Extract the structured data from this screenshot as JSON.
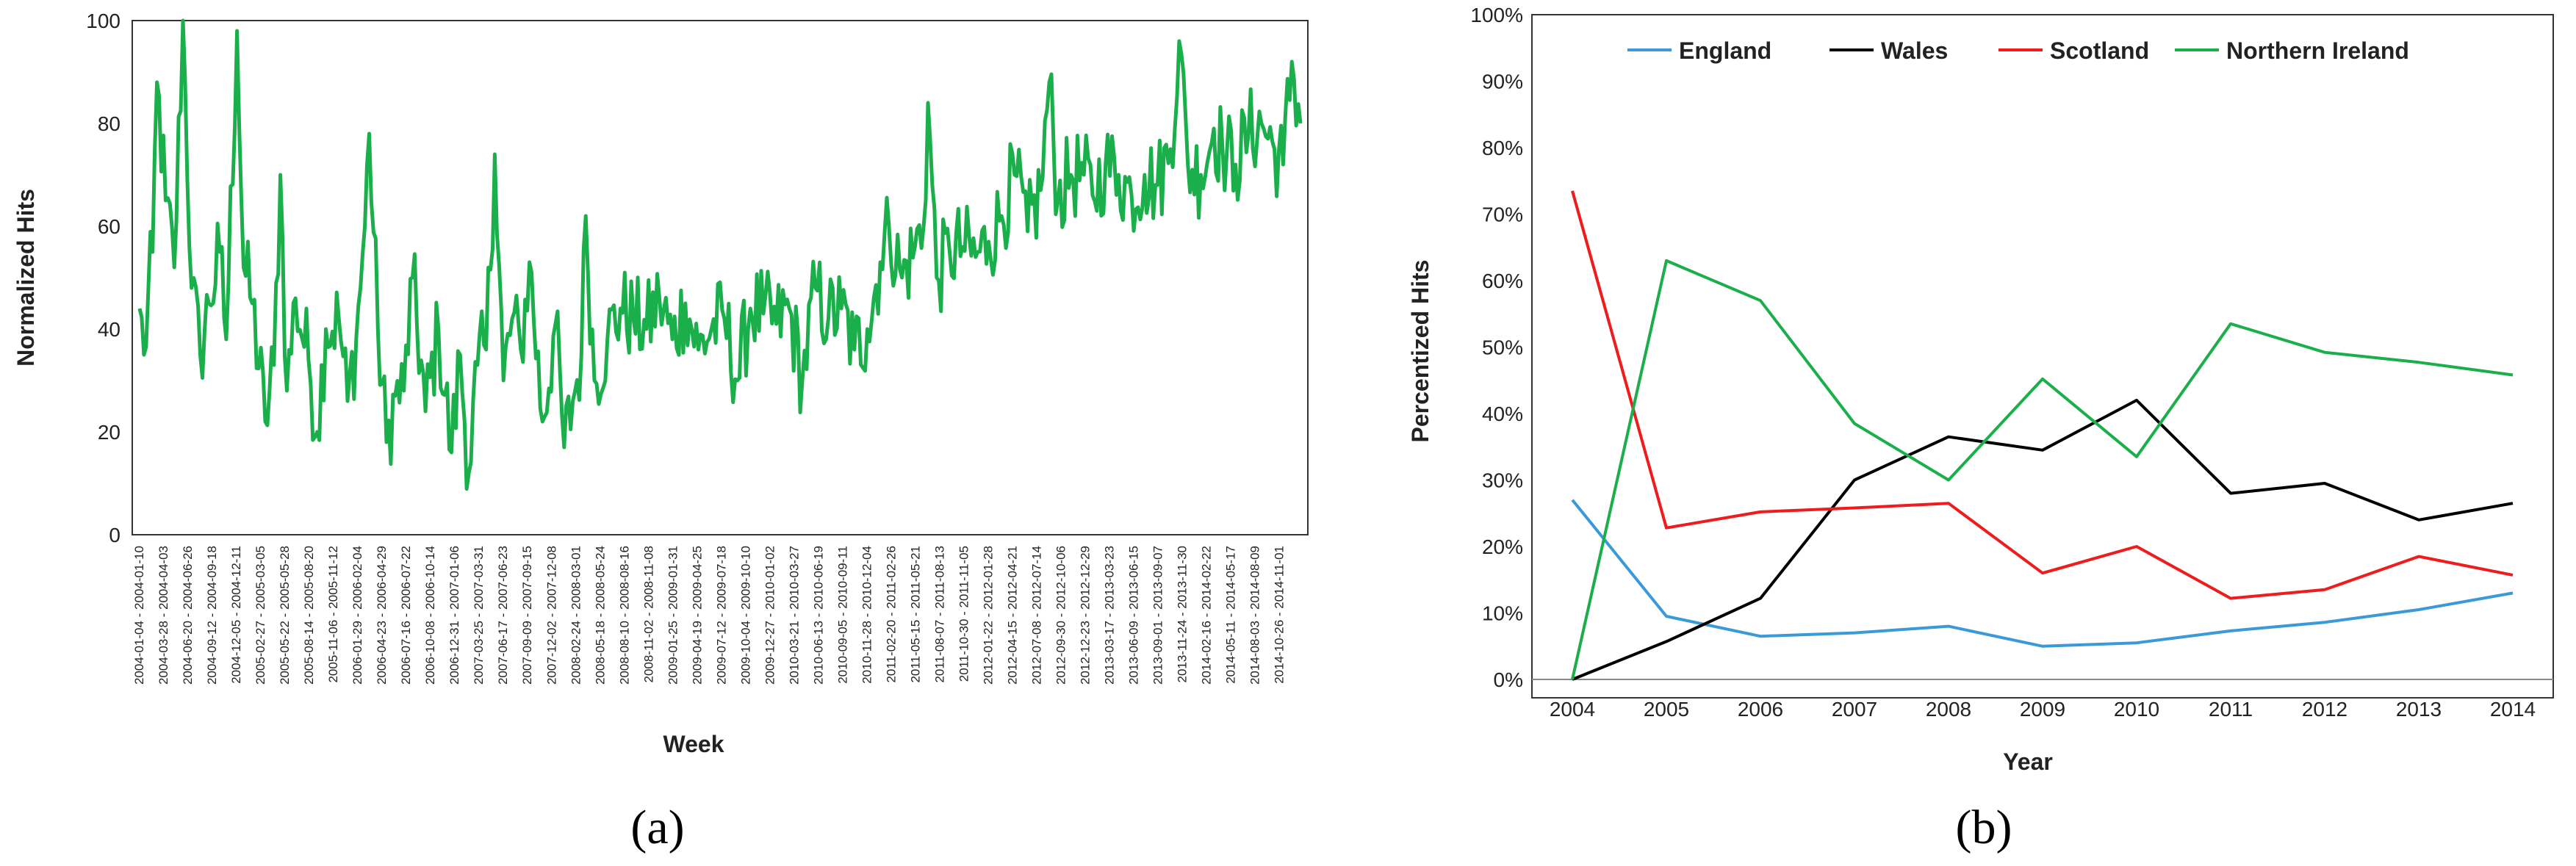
{
  "labels": {
    "panel_a": "(a)",
    "panel_b": "(b)"
  },
  "chart_data": [
    {
      "type": "line",
      "title": "",
      "xlabel": "Week",
      "ylabel": "Normalized Hits",
      "ylim": [
        0,
        100
      ],
      "yticks": [
        0,
        20,
        40,
        60,
        80,
        100
      ],
      "grid": false,
      "line_color": "#1aaf4b",
      "x_tick_labels": [
        "2004-01-04 - 2004-01-10",
        "2004-03-28 - 2004-04-03",
        "2004-06-20 - 2004-06-26",
        "2004-09-12 - 2004-09-18",
        "2004-12-05 - 2004-12-11",
        "2005-02-27 - 2005-03-05",
        "2005-05-22 - 2005-05-28",
        "2005-08-14 - 2005-08-20",
        "2005-11-06 - 2005-11-12",
        "2006-01-29 - 2006-02-04",
        "2006-04-23 - 2006-04-29",
        "2006-07-16 - 2006-07-22",
        "2006-10-08 - 2006-10-14",
        "2006-12-31 - 2007-01-06",
        "2007-03-25 - 2007-03-31",
        "2007-06-17 - 2007-06-23",
        "2007-09-09 - 2007-09-15",
        "2007-12-02 - 2007-12-08",
        "2008-02-24 - 2008-03-01",
        "2008-05-18 - 2008-05-24",
        "2008-08-10 - 2008-08-16",
        "2008-11-02 - 2008-11-08",
        "2009-01-25 - 2009-01-31",
        "2009-04-19 - 2009-04-25",
        "2009-07-12 - 2009-07-18",
        "2009-10-04 - 2009-10-10",
        "2009-12-27 - 2010-01-02",
        "2010-03-21 - 2010-03-27",
        "2010-06-13 - 2010-06-19",
        "2010-09-05 - 2010-09-11",
        "2010-11-28 - 2010-12-04",
        "2011-02-20 - 2011-02-26",
        "2011-05-15 - 2011-05-21",
        "2011-08-07 - 2011-08-13",
        "2011-10-30 - 2011-11-05",
        "2012-01-22 - 2012-01-28",
        "2012-04-15 - 2012-04-21",
        "2012-07-08 - 2012-07-14",
        "2012-09-30 - 2012-10-06",
        "2012-12-23 - 2012-12-29",
        "2013-03-17 - 2013-03-23",
        "2013-06-09 - 2013-06-15",
        "2013-09-01 - 2013-09-07",
        "2013-11-24 - 2013-11-30",
        "2014-02-16 - 2014-02-22",
        "2014-05-11 - 2014-05-17",
        "2014-08-03 - 2014-08-09",
        "2014-10-26 - 2014-11-01"
      ],
      "anchors": [
        [
          0,
          44
        ],
        [
          2,
          35
        ],
        [
          6,
          55
        ],
        [
          8,
          88
        ],
        [
          12,
          65
        ],
        [
          16,
          52
        ],
        [
          20,
          100
        ],
        [
          24,
          48
        ],
        [
          28,
          35
        ],
        [
          32,
          45
        ],
        [
          37,
          55
        ],
        [
          40,
          38
        ],
        [
          45,
          98
        ],
        [
          48,
          52
        ],
        [
          52,
          45
        ],
        [
          58,
          22
        ],
        [
          62,
          33
        ],
        [
          65,
          70
        ],
        [
          68,
          28
        ],
        [
          72,
          46
        ],
        [
          78,
          34
        ],
        [
          82,
          20
        ],
        [
          86,
          40
        ],
        [
          92,
          42
        ],
        [
          96,
          26
        ],
        [
          100,
          38
        ],
        [
          104,
          60
        ],
        [
          106,
          78
        ],
        [
          110,
          40
        ],
        [
          114,
          18
        ],
        [
          118,
          27
        ],
        [
          122,
          28
        ],
        [
          126,
          50
        ],
        [
          132,
          24
        ],
        [
          138,
          40
        ],
        [
          144,
          16
        ],
        [
          148,
          35
        ],
        [
          152,
          12
        ],
        [
          156,
          33
        ],
        [
          160,
          36
        ],
        [
          164,
          74
        ],
        [
          168,
          30
        ],
        [
          172,
          42
        ],
        [
          176,
          36
        ],
        [
          180,
          53
        ],
        [
          186,
          22
        ],
        [
          192,
          41
        ],
        [
          196,
          17
        ],
        [
          200,
          26
        ],
        [
          204,
          35
        ],
        [
          206,
          62
        ],
        [
          210,
          30
        ],
        [
          216,
          38
        ],
        [
          222,
          44
        ],
        [
          228,
          42
        ],
        [
          234,
          40
        ],
        [
          240,
          46
        ],
        [
          246,
          38
        ],
        [
          252,
          45
        ],
        [
          258,
          36
        ],
        [
          264,
          40
        ],
        [
          270,
          42
        ],
        [
          276,
          30
        ],
        [
          282,
          44
        ],
        [
          288,
          43
        ],
        [
          294,
          41
        ],
        [
          300,
          44
        ],
        [
          306,
          30
        ],
        [
          312,
          48
        ],
        [
          318,
          42
        ],
        [
          324,
          44
        ],
        [
          330,
          36
        ],
        [
          336,
          40
        ],
        [
          342,
          53
        ],
        [
          346,
          60
        ],
        [
          352,
          50
        ],
        [
          358,
          56
        ],
        [
          362,
          60
        ],
        [
          364,
          84
        ],
        [
          368,
          50
        ],
        [
          374,
          55
        ],
        [
          380,
          56
        ],
        [
          386,
          54
        ],
        [
          392,
          57
        ],
        [
          398,
          62
        ],
        [
          404,
          70
        ],
        [
          410,
          59
        ],
        [
          416,
          67
        ],
        [
          420,
          88
        ],
        [
          424,
          65
        ],
        [
          430,
          70
        ],
        [
          436,
          70
        ],
        [
          440,
          66
        ],
        [
          446,
          72
        ],
        [
          452,
          70
        ],
        [
          458,
          66
        ],
        [
          464,
          70
        ],
        [
          470,
          68
        ],
        [
          476,
          75
        ],
        [
          480,
          96
        ],
        [
          484,
          72
        ],
        [
          490,
          70
        ],
        [
          496,
          79
        ],
        [
          500,
          75
        ],
        [
          506,
          72
        ],
        [
          512,
          78
        ],
        [
          518,
          80
        ],
        [
          524,
          75
        ],
        [
          528,
          72
        ],
        [
          532,
          92
        ],
        [
          536,
          80
        ]
      ],
      "n_weeks": 537
    },
    {
      "type": "line",
      "title": "",
      "xlabel": "Year",
      "ylabel": "Percentized Hits",
      "categories": [
        "2004",
        "2005",
        "2006",
        "2007",
        "2008",
        "2009",
        "2010",
        "2011",
        "2012",
        "2013",
        "2014"
      ],
      "ylim": [
        0,
        100
      ],
      "yticks": [
        "0%",
        "10%",
        "20%",
        "30%",
        "40%",
        "50%",
        "60%",
        "70%",
        "80%",
        "90%",
        "100%"
      ],
      "legend_position": "top",
      "grid": false,
      "series": [
        {
          "name": "England",
          "color": "#3a9ad9",
          "values": [
            27,
            9.5,
            6.5,
            7,
            8,
            5,
            5.5,
            7.3,
            8.6,
            10.5,
            13
          ]
        },
        {
          "name": "Wales",
          "color": "#000000",
          "values": [
            0,
            5.7,
            12.2,
            30,
            36.5,
            34.5,
            42,
            28,
            29.5,
            24,
            26.5
          ]
        },
        {
          "name": "Scotland",
          "color": "#ee1c1c",
          "values": [
            73.5,
            22.8,
            25.2,
            25.8,
            26.5,
            16,
            20,
            12.2,
            13.5,
            18.5,
            15.7
          ]
        },
        {
          "name": "Northern Ireland",
          "color": "#1aaf4b",
          "values": [
            0,
            63,
            57,
            38.5,
            30,
            45.2,
            33.5,
            53.5,
            49.2,
            47.7,
            45.8
          ]
        }
      ]
    }
  ]
}
